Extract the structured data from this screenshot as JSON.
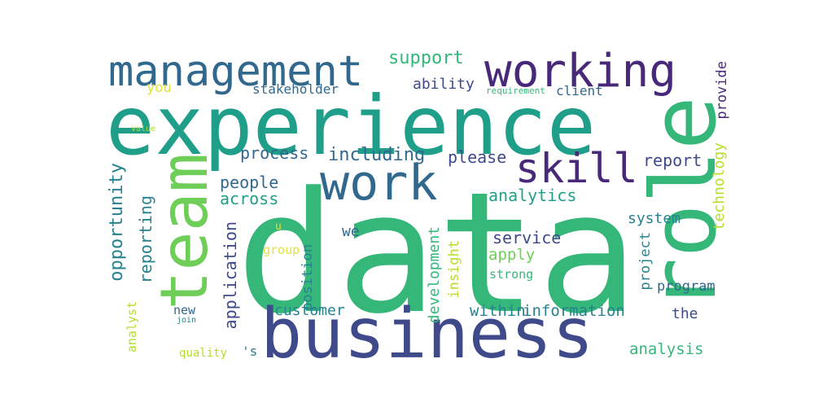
{
  "colors": {
    "dark_purple": "#482878",
    "indigo": "#3e4a89",
    "blue": "#31688e",
    "steel": "#26828e",
    "teal": "#1f9e89",
    "green": "#35b779",
    "lime": "#6ece58",
    "yellow_green": "#b5de2b",
    "yellow": "#e0e33a"
  },
  "words": {
    "data": "data",
    "experience": "experience",
    "business": "business",
    "role": "role",
    "team": "team",
    "management": "management",
    "working": "working",
    "work": "work",
    "skill": "skill",
    "support": "support",
    "ability": "ability",
    "stakeholder": "stakeholder",
    "you": "you",
    "requirement": "requirement",
    "client": "client",
    "provide": "provide",
    "value": "value",
    "process": "process",
    "including": "including",
    "please": "please",
    "report": "report",
    "opportunity": "opportunity",
    "reporting": "reporting",
    "people": "people",
    "across": "across",
    "analytics": "analytics",
    "technology": "technology",
    "system": "system",
    "application": "application",
    "u": "u",
    "group": "group",
    "position": "position",
    "we": "we",
    "service": "service",
    "apply": "apply",
    "insight": "insight",
    "development": "development",
    "strong": "strong",
    "project": "project",
    "program": "program",
    "analyst": "analyst",
    "new": "new",
    "join": "join",
    "customer": "customer",
    "within": "within",
    "information": "information",
    "the": "the",
    "quality": "quality",
    "s": "'s",
    "analysis": "analysis"
  }
}
